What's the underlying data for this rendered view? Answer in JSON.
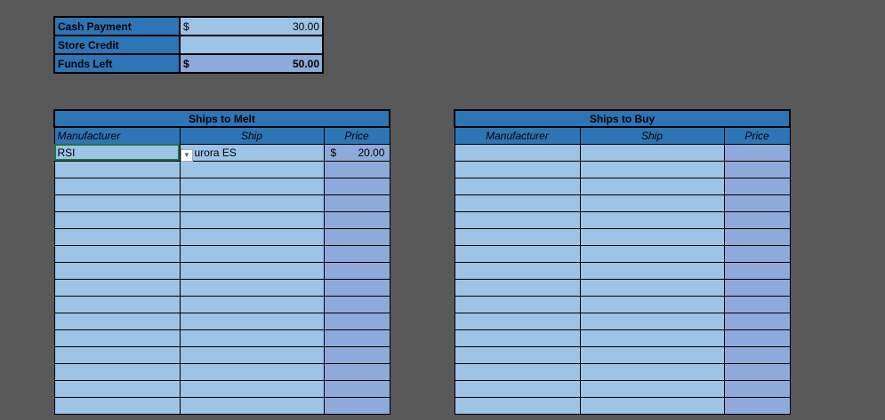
{
  "summary": {
    "rows": [
      {
        "label": "Cash Payment",
        "currency": "$",
        "value": "30.00",
        "bold": false
      },
      {
        "label": "Store Credit",
        "currency": "",
        "value": "",
        "bold": false
      },
      {
        "label": "Funds Left",
        "currency": "$",
        "value": "50.00",
        "bold": true
      }
    ]
  },
  "melt": {
    "title": "Ships to Melt",
    "columns": [
      "Manufacturer",
      "Ship",
      "Price"
    ],
    "rows": [
      {
        "manufacturer": "RSI",
        "ship": "urora ES",
        "currency": "$",
        "price": "20.00"
      }
    ]
  },
  "buy": {
    "title": "Ships to Buy",
    "columns": [
      "Manufacturer",
      "Ship",
      "Price"
    ],
    "rows": []
  },
  "colors": {
    "background": "#595959",
    "header": "#2e75b6",
    "cell": "#9dc3e6",
    "price": "#8eaadb",
    "selection": "#217346"
  },
  "dropdown_icon": "chevron-down-icon"
}
